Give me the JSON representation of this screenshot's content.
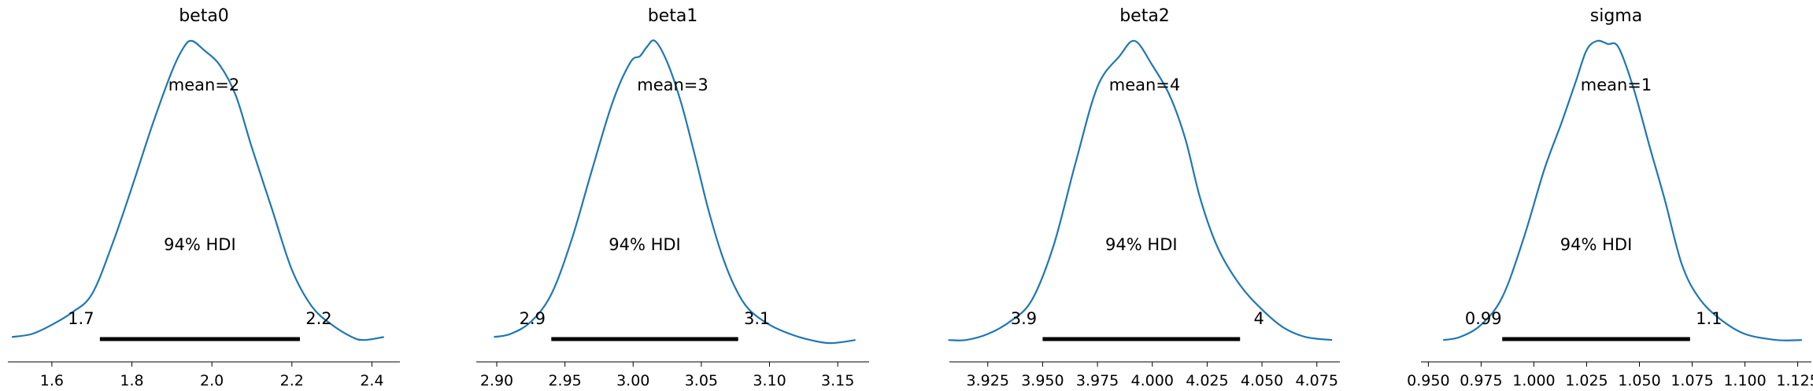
{
  "chart_data": [
    {
      "type": "area",
      "title": "beta0",
      "mean_label": "mean=2",
      "hdi_label": "94% HDI",
      "hdi_low": 1.72,
      "hdi_high": 2.22,
      "hdi_low_label": "1.7",
      "hdi_high_label": "2.2",
      "xlim": [
        1.49,
        2.47
      ],
      "xticks": [
        1.6,
        1.8,
        2.0,
        2.2,
        2.4
      ],
      "xtick_labels": [
        "1.6",
        "1.8",
        "2.0",
        "2.2",
        "2.4"
      ],
      "density": [
        [
          1.5,
          0.03
        ],
        [
          1.55,
          0.04
        ],
        [
          1.6,
          0.07
        ],
        [
          1.65,
          0.11
        ],
        [
          1.7,
          0.17
        ],
        [
          1.75,
          0.33
        ],
        [
          1.8,
          0.52
        ],
        [
          1.85,
          0.72
        ],
        [
          1.9,
          0.9
        ],
        [
          1.93,
          0.98
        ],
        [
          1.95,
          1.0
        ],
        [
          1.98,
          0.97
        ],
        [
          2.02,
          0.92
        ],
        [
          2.06,
          0.82
        ],
        [
          2.1,
          0.65
        ],
        [
          2.15,
          0.45
        ],
        [
          2.2,
          0.25
        ],
        [
          2.25,
          0.13
        ],
        [
          2.3,
          0.07
        ],
        [
          2.35,
          0.03
        ],
        [
          2.38,
          0.02
        ],
        [
          2.43,
          0.03
        ]
      ]
    },
    {
      "type": "area",
      "title": "beta1",
      "mean_label": "mean=3",
      "hdi_label": "94% HDI",
      "hdi_low": 2.94,
      "hdi_high": 3.077,
      "hdi_low_label": "2.9",
      "hdi_high_label": "3.1",
      "xlim": [
        2.885,
        3.173
      ],
      "xticks": [
        2.9,
        2.95,
        3.0,
        3.05,
        3.1,
        3.15
      ],
      "xtick_labels": [
        "2.90",
        "2.95",
        "3.00",
        "3.05",
        "3.10",
        "3.15"
      ],
      "density": [
        [
          2.898,
          0.03
        ],
        [
          2.91,
          0.04
        ],
        [
          2.925,
          0.08
        ],
        [
          2.94,
          0.17
        ],
        [
          2.955,
          0.35
        ],
        [
          2.97,
          0.58
        ],
        [
          2.985,
          0.8
        ],
        [
          2.998,
          0.93
        ],
        [
          3.005,
          0.95
        ],
        [
          3.01,
          0.98
        ],
        [
          3.016,
          1.0
        ],
        [
          3.025,
          0.93
        ],
        [
          3.035,
          0.8
        ],
        [
          3.045,
          0.63
        ],
        [
          3.055,
          0.45
        ],
        [
          3.065,
          0.3
        ],
        [
          3.075,
          0.19
        ],
        [
          3.085,
          0.12
        ],
        [
          3.1,
          0.07
        ],
        [
          3.115,
          0.04
        ],
        [
          3.13,
          0.02
        ],
        [
          3.145,
          0.01
        ],
        [
          3.163,
          0.02
        ]
      ]
    },
    {
      "type": "area",
      "title": "beta2",
      "mean_label": "mean=4",
      "hdi_label": "94% HDI",
      "hdi_low": 3.95,
      "hdi_high": 4.04,
      "hdi_low_label": "3.9",
      "hdi_high_label": "4",
      "xlim": [
        3.9075,
        4.0855
      ],
      "xticks": [
        3.925,
        3.95,
        3.975,
        4.0,
        4.025,
        4.05,
        4.075
      ],
      "xtick_labels": [
        "3.925",
        "3.950",
        "3.975",
        "4.000",
        "4.025",
        "4.050",
        "4.075"
      ],
      "density": [
        [
          3.907,
          0.02
        ],
        [
          3.915,
          0.02
        ],
        [
          3.925,
          0.04
        ],
        [
          3.935,
          0.08
        ],
        [
          3.945,
          0.15
        ],
        [
          3.955,
          0.33
        ],
        [
          3.965,
          0.6
        ],
        [
          3.975,
          0.85
        ],
        [
          3.985,
          0.95
        ],
        [
          3.992,
          1.0
        ],
        [
          4.0,
          0.92
        ],
        [
          4.008,
          0.82
        ],
        [
          4.015,
          0.68
        ],
        [
          4.022,
          0.48
        ],
        [
          4.03,
          0.32
        ],
        [
          4.04,
          0.2
        ],
        [
          4.05,
          0.12
        ],
        [
          4.06,
          0.06
        ],
        [
          4.07,
          0.03
        ],
        [
          4.082,
          0.02
        ]
      ]
    },
    {
      "type": "area",
      "title": "sigma",
      "mean_label": "mean=1",
      "hdi_label": "94% HDI",
      "hdi_low": 0.985,
      "hdi_high": 1.074,
      "hdi_low_label": "0.99",
      "hdi_high_label": "1.1",
      "xlim": [
        0.9465,
        1.1315
      ],
      "xticks": [
        0.95,
        0.975,
        1.0,
        1.025,
        1.05,
        1.075,
        1.1,
        1.125
      ],
      "xtick_labels": [
        "0.950",
        "0.975",
        "1.000",
        "1.025",
        "1.050",
        "1.075",
        "1.100",
        "1.125"
      ],
      "density": [
        [
          0.957,
          0.02
        ],
        [
          0.965,
          0.03
        ],
        [
          0.975,
          0.07
        ],
        [
          0.985,
          0.16
        ],
        [
          0.995,
          0.35
        ],
        [
          1.005,
          0.58
        ],
        [
          1.013,
          0.73
        ],
        [
          1.02,
          0.87
        ],
        [
          1.025,
          0.97
        ],
        [
          1.03,
          1.0
        ],
        [
          1.035,
          0.99
        ],
        [
          1.04,
          0.98
        ],
        [
          1.047,
          0.85
        ],
        [
          1.055,
          0.65
        ],
        [
          1.062,
          0.48
        ],
        [
          1.07,
          0.27
        ],
        [
          1.078,
          0.16
        ],
        [
          1.088,
          0.09
        ],
        [
          1.1,
          0.04
        ],
        [
          1.115,
          0.02
        ],
        [
          1.127,
          0.02
        ]
      ]
    }
  ]
}
